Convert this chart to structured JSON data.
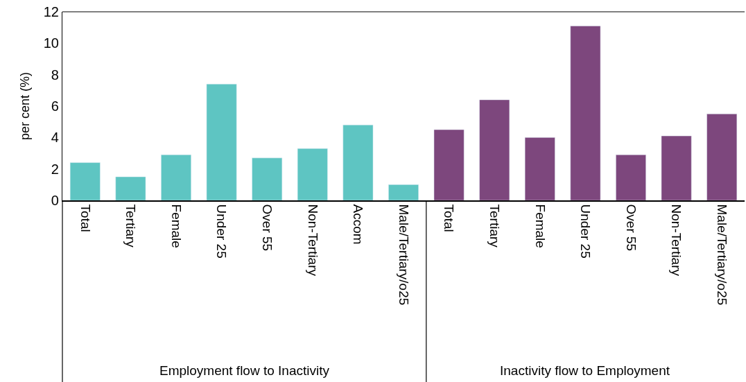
{
  "chart_data": {
    "type": "bar",
    "ylabel": "per cent (%)",
    "categories": [
      "Total",
      "Tertiary",
      "Female",
      "Under 25",
      "Over 55",
      "Non-Tertiary",
      "Accom",
      "Male/Tertiary/o25",
      "Total",
      "Tertiary",
      "Female",
      "Under 25",
      "Over 55",
      "Non-Tertiary",
      "Male/Tertiary/o25"
    ],
    "series": [
      {
        "color": "#5ec5c2",
        "values": [
          2.4,
          1.5,
          2.9,
          7.4,
          2.7,
          3.3,
          4.8,
          1.0,
          null,
          null,
          null,
          null,
          null,
          null,
          null
        ]
      },
      {
        "color": "#7d477d",
        "values": [
          null,
          null,
          null,
          null,
          null,
          null,
          null,
          null,
          4.5,
          6.4,
          4.0,
          11.1,
          2.9,
          4.1,
          5.5
        ]
      }
    ],
    "annotations": [
      "Employment flow to Inactivity",
      "Inactivity flow to Employment"
    ],
    "ylim": [
      0,
      12
    ],
    "yticks": [
      0,
      2,
      4,
      6,
      8,
      10,
      12
    ]
  }
}
